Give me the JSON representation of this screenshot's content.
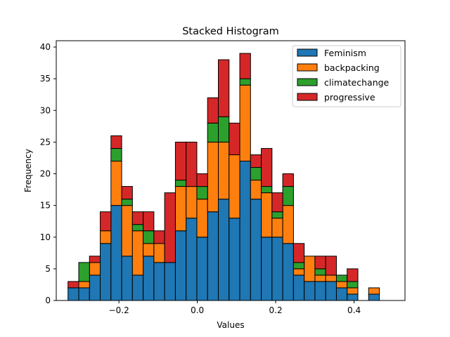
{
  "chart_data": {
    "type": "bar",
    "stacked": true,
    "title": "Stacked Histogram",
    "xlabel": "Values",
    "ylabel": "Frequency",
    "xlim": [
      -0.36,
      0.53
    ],
    "ylim": [
      0,
      41
    ],
    "x_ticks": [
      -0.2,
      0.0,
      0.2,
      0.4
    ],
    "x_tick_labels": [
      "−0.2",
      "0.0",
      "0.2",
      "0.4"
    ],
    "y_ticks": [
      0,
      5,
      10,
      15,
      20,
      25,
      30,
      35,
      40
    ],
    "y_tick_labels": [
      "0",
      "5",
      "10",
      "15",
      "20",
      "25",
      "30",
      "35",
      "40"
    ],
    "bin_start": -0.33,
    "bin_width": 0.0274,
    "grid": false,
    "legend_position": "upper right",
    "series": [
      {
        "name": "Feminism",
        "color": "#1f77b4",
        "values": [
          2,
          2,
          4,
          9,
          15,
          7,
          4,
          7,
          6,
          6,
          11,
          13,
          10,
          14,
          16,
          13,
          22,
          16,
          10,
          10,
          9,
          4,
          3,
          3,
          3,
          2,
          1,
          0,
          1
        ]
      },
      {
        "name": "backpacking",
        "color": "#ff7f0e",
        "values": [
          0,
          1,
          2,
          2,
          7,
          8,
          7,
          2,
          3,
          0,
          7,
          5,
          6,
          11,
          9,
          10,
          12,
          3,
          7,
          3,
          6,
          1,
          4,
          1,
          1,
          1,
          1,
          0,
          1
        ]
      },
      {
        "name": "climatechange",
        "color": "#2ca02c",
        "values": [
          0,
          3,
          0,
          0,
          2,
          1,
          1,
          2,
          0,
          0,
          1,
          0,
          2,
          3,
          4,
          0,
          1,
          2,
          1,
          1,
          3,
          1,
          0,
          1,
          0,
          1,
          1,
          0,
          0
        ]
      },
      {
        "name": "progressive",
        "color": "#d62728",
        "values": [
          1,
          0,
          1,
          3,
          2,
          2,
          2,
          3,
          2,
          11,
          6,
          7,
          2,
          4,
          9,
          5,
          4,
          2,
          6,
          3,
          2,
          3,
          0,
          2,
          3,
          0,
          2,
          0,
          0
        ]
      }
    ]
  }
}
